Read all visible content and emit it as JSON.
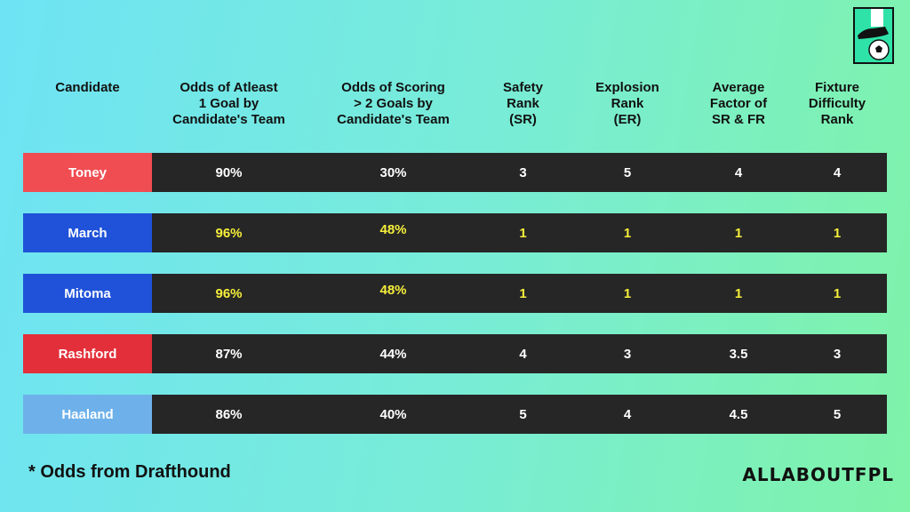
{
  "columns": [
    "Candidate",
    "Odds of Atleast\n1 Goal by\nCandidate's Team",
    "Odds of Scoring\n> 2 Goals by\nCandidate's Team",
    "Safety\nRank\n(SR)",
    "Explosion\nRank\n(ER)",
    "Average\nFactor of\nSR & FR",
    "Fixture\nDifficulty\nRank"
  ],
  "rows": [
    {
      "name": "Toney",
      "color": "#f04d52",
      "values": [
        "90%",
        "30%",
        "3",
        "5",
        "4",
        "4"
      ],
      "highlight": false
    },
    {
      "name": "March",
      "color": "#1f52d8",
      "values": [
        "96%",
        "48%",
        "1",
        "1",
        "1",
        "1"
      ],
      "highlight": true
    },
    {
      "name": "Mitoma",
      "color": "#1f52d8",
      "values": [
        "96%",
        "48%",
        "1",
        "1",
        "1",
        "1"
      ],
      "highlight": true
    },
    {
      "name": "Rashford",
      "color": "#e32f3a",
      "values": [
        "87%",
        "44%",
        "4",
        "3",
        "3.5",
        "3"
      ],
      "highlight": false
    },
    {
      "name": "Haaland",
      "color": "#6eb1ea",
      "values": [
        "86%",
        "40%",
        "5",
        "4",
        "4.5",
        "5"
      ],
      "highlight": false
    }
  ],
  "highlight_color": "#f6ef3a",
  "footnote": "*  Odds from Drafthound",
  "brand": "ALLABOUTFPL",
  "logo_icon": "football-boot-and-ball-icon"
}
